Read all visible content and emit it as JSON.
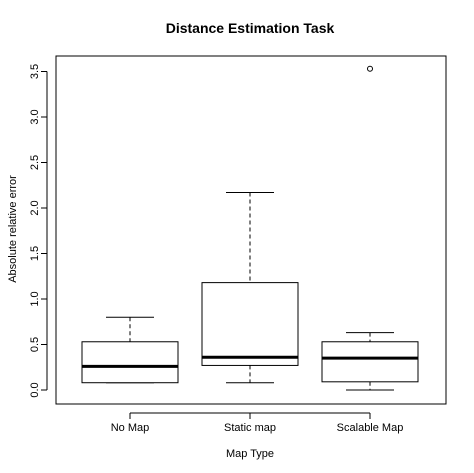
{
  "chart_data": {
    "type": "boxplot",
    "title": "Distance Estimation Task",
    "xlabel": "Map Type",
    "ylabel": "Absolute relative error",
    "categories": [
      "No Map",
      "Static map",
      "Scalable Map"
    ],
    "ylim": [
      -0.15,
      3.7
    ],
    "yticks": [
      0.0,
      0.5,
      1.0,
      1.5,
      2.0,
      2.5,
      3.0,
      3.5
    ],
    "ytick_labels": [
      "0.0",
      "0.5",
      "1.0",
      "1.5",
      "2.0",
      "2.5",
      "3.0",
      "3.5"
    ],
    "grid": false,
    "boxes": [
      {
        "category": "No Map",
        "whisker_low": 0.08,
        "q1": 0.08,
        "median": 0.26,
        "q3": 0.53,
        "whisker_high": 0.8,
        "outliers": []
      },
      {
        "category": "Static map",
        "whisker_low": 0.08,
        "q1": 0.27,
        "median": 0.36,
        "q3": 1.18,
        "whisker_high": 2.17,
        "outliers": []
      },
      {
        "category": "Scalable Map",
        "whisker_low": 0.0,
        "q1": 0.09,
        "median": 0.35,
        "q3": 0.53,
        "whisker_high": 0.63,
        "outliers": [
          3.53
        ]
      }
    ]
  }
}
